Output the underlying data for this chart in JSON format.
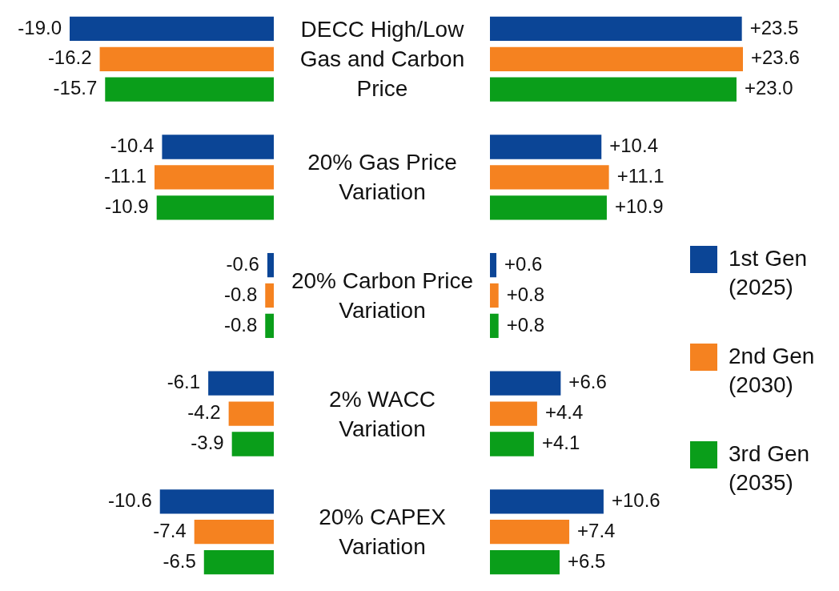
{
  "chart_data": [
    {
      "type": "bar",
      "orientation": "horizontal",
      "categories": [
        "DECC High/Low Gas and Carbon Price",
        "20% Gas Price Variation",
        "20% Carbon Price Variation",
        "2% WACC Variation",
        "20% CAPEX Variation"
      ],
      "series": [
        {
          "color": "#0b4596",
          "values": [
            -19.0,
            -10.4,
            -0.6,
            -6.1,
            -10.6
          ],
          "value_labels": [
            "-19.0",
            "-10.4",
            "-0.6",
            "-6.1",
            "-10.6"
          ]
        },
        {
          "color": "#f58220",
          "values": [
            -16.2,
            -11.1,
            -0.8,
            -4.2,
            -7.4
          ],
          "value_labels": [
            "-16.2",
            "-11.1",
            "-0.8",
            "-4.2",
            "-7.4"
          ]
        },
        {
          "color": "#0a9e1a",
          "values": [
            -15.7,
            -10.9,
            -0.8,
            -3.9,
            -6.5
          ],
          "value_labels": [
            "-15.7",
            "-10.9",
            "-0.8",
            "-3.9",
            "-6.5"
          ]
        }
      ],
      "tick_labels": "y"
    },
    {
      "type": "bar",
      "orientation": "horizontal",
      "categories": [
        null,
        null,
        null,
        null,
        null
      ],
      "series": [
        {
          "name": "1st Gen (2025)",
          "color": "#0b4596",
          "values": [
            23.5,
            10.4,
            0.6,
            6.6,
            10.6
          ],
          "value_labels": [
            "+23.5",
            "+10.4",
            "+0.6",
            "+6.6",
            "+10.6"
          ]
        },
        {
          "name": "2nd Gen (2030)",
          "color": "#f58220",
          "values": [
            23.6,
            11.1,
            0.8,
            4.4,
            7.4
          ],
          "value_labels": [
            "+23.6",
            "+11.1",
            "+0.8",
            "+4.4",
            "+7.4"
          ]
        },
        {
          "name": "3rd Gen (2035)",
          "color": "#0a9e1a",
          "values": [
            23.0,
            10.9,
            0.8,
            4.1,
            6.5
          ],
          "value_labels": [
            "+23.0",
            "+10.9",
            "+0.8",
            "+4.1",
            "+6.5"
          ]
        }
      ],
      "tick_labels": false,
      "legend": "right"
    }
  ]
}
